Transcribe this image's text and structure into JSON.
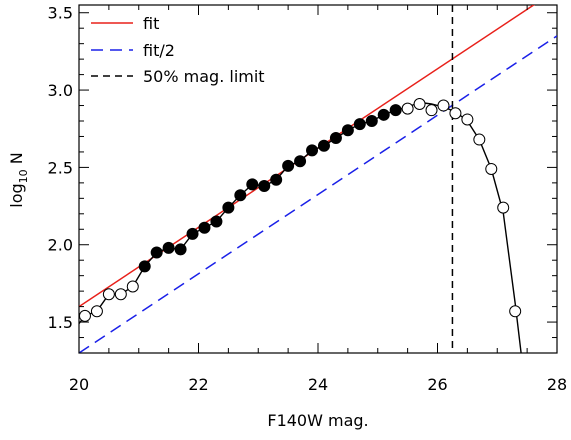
{
  "chart_data": {
    "type": "scatter",
    "xlabel": "F140W mag.",
    "ylabel_main": "log",
    "ylabel_sub": "10",
    "ylabel_suffix": " N",
    "xlim": [
      20,
      28
    ],
    "ylim": [
      1.3,
      3.55
    ],
    "xticks": [
      20,
      22,
      24,
      26,
      28
    ],
    "yticks": [
      1.5,
      2.0,
      2.5,
      3.0,
      3.5
    ],
    "xticks_labels": [
      "20",
      "22",
      "24",
      "26",
      "28"
    ],
    "yticks_labels": [
      "1.5",
      "2.0",
      "2.5",
      "3.0",
      "3.5"
    ],
    "grid": false,
    "legend_position": "top-left",
    "legend": {
      "fit": "fit",
      "half": "fit/2",
      "limit": "50% mag. limit"
    },
    "fit_line": {
      "x": [
        20,
        28
      ],
      "y": [
        1.6,
        3.65
      ],
      "color": "#e8201a"
    },
    "half_fit_line": {
      "x": [
        20,
        28
      ],
      "y": [
        1.3,
        3.35
      ],
      "color": "#1a20e8"
    },
    "mag_limit": {
      "x": 26.25,
      "color": "#000000"
    },
    "filled_points": {
      "x": [
        21.1,
        21.3,
        21.5,
        21.7,
        21.9,
        22.1,
        22.3,
        22.5,
        22.7,
        22.9,
        23.1,
        23.3,
        23.5,
        23.7,
        23.9,
        24.1,
        24.3,
        24.5,
        24.7,
        24.9,
        25.1,
        25.3
      ],
      "y": [
        1.86,
        1.95,
        1.98,
        1.97,
        2.07,
        2.11,
        2.15,
        2.24,
        2.32,
        2.39,
        2.38,
        2.42,
        2.51,
        2.54,
        2.61,
        2.64,
        2.69,
        2.74,
        2.78,
        2.8,
        2.84,
        2.87
      ]
    },
    "open_points": {
      "x": [
        20.1,
        20.3,
        20.5,
        20.7,
        20.9,
        25.5,
        25.7,
        25.9,
        26.1,
        26.3,
        26.5,
        26.7,
        26.9,
        27.1,
        27.3
      ],
      "y": [
        1.54,
        1.57,
        1.68,
        1.68,
        1.73,
        2.88,
        2.91,
        2.87,
        2.9,
        2.85,
        2.81,
        2.68,
        2.49,
        2.24,
        1.57
      ]
    },
    "curve": {
      "x": [
        20.0,
        20.1,
        20.3,
        20.5,
        20.7,
        20.9,
        21.1,
        21.3,
        21.5,
        21.7,
        21.9,
        22.1,
        22.3,
        22.5,
        22.7,
        22.9,
        23.1,
        23.3,
        23.5,
        23.7,
        23.9,
        24.1,
        24.3,
        24.5,
        24.7,
        24.9,
        25.1,
        25.3,
        25.5,
        25.7,
        25.9,
        26.1,
        26.3,
        26.5,
        26.7,
        26.9,
        27.1,
        27.3,
        27.4
      ],
      "y": [
        1.49,
        1.54,
        1.57,
        1.68,
        1.68,
        1.73,
        1.86,
        1.95,
        1.98,
        1.97,
        2.07,
        2.11,
        2.15,
        2.24,
        2.32,
        2.39,
        2.38,
        2.42,
        2.51,
        2.54,
        2.61,
        2.64,
        2.69,
        2.74,
        2.78,
        2.8,
        2.84,
        2.87,
        2.89,
        2.92,
        2.91,
        2.89,
        2.86,
        2.8,
        2.68,
        2.49,
        2.21,
        1.62,
        1.3
      ]
    }
  }
}
